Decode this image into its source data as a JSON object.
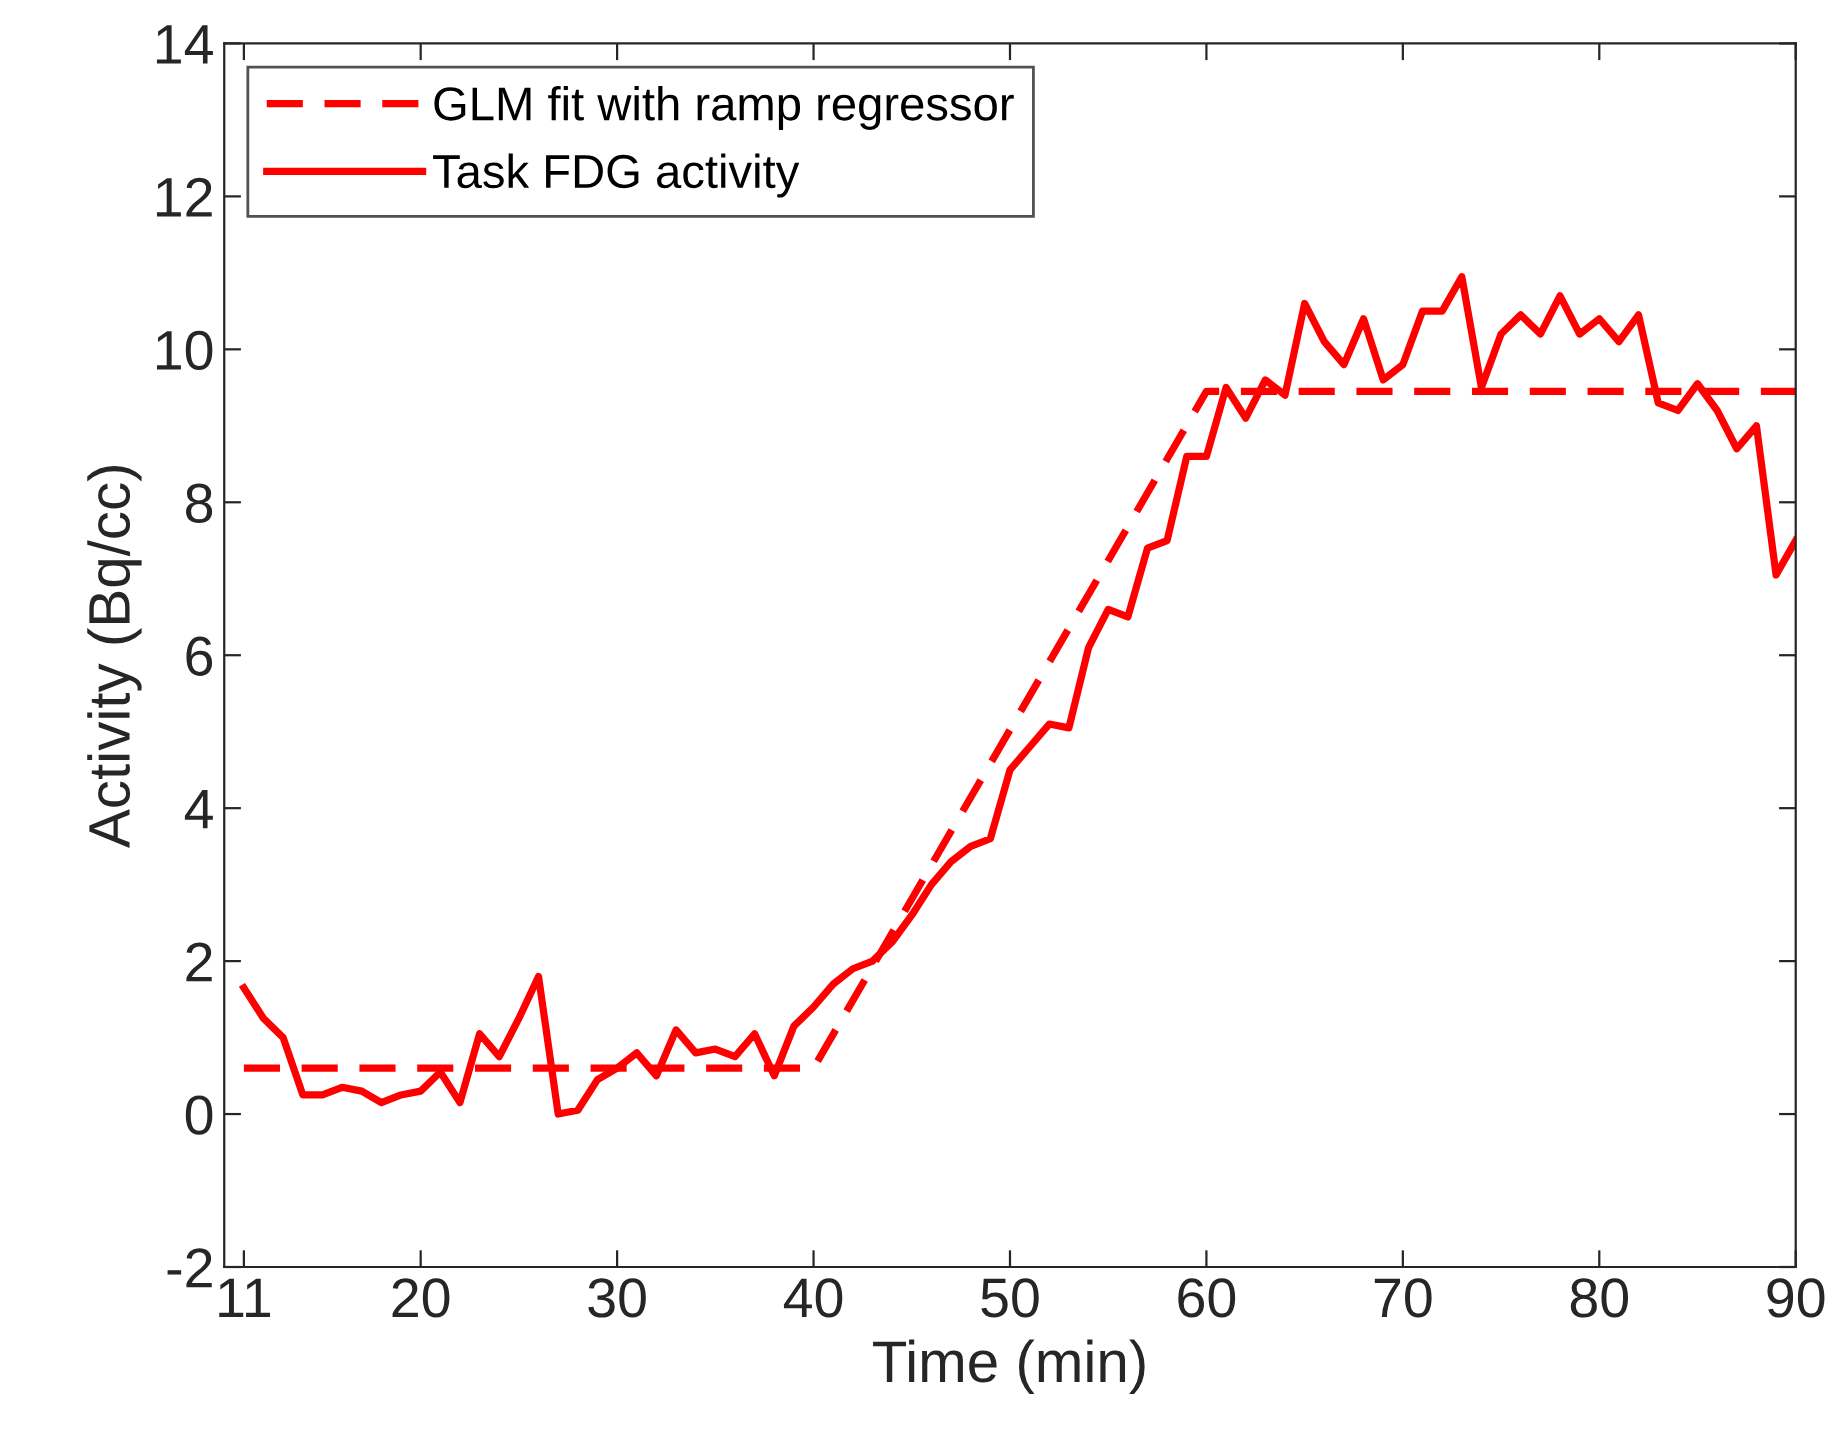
{
  "chart_data": {
    "type": "line",
    "xlabel": "Time (min)",
    "ylabel": "Activity (Bq/cc)",
    "xlim": [
      10,
      90
    ],
    "xticks": [
      11,
      20,
      30,
      40,
      50,
      60,
      70,
      80,
      90
    ],
    "ylim": [
      -2,
      14
    ],
    "yticks": [
      -2,
      0,
      2,
      4,
      6,
      8,
      10,
      12,
      14
    ],
    "grid": false,
    "legend": "top left",
    "marker": "none",
    "series": [
      {
        "name": "GLM fit with ramp regressor",
        "color": "#ff0000",
        "line_style": "dashed",
        "x": [
          11,
          40,
          60,
          90
        ],
        "values": [
          0.6,
          0.6,
          9.45,
          9.45
        ]
      },
      {
        "name": "Task FDG activity",
        "color": "#ff0000",
        "line_style": "solid",
        "x": [
          11,
          12,
          13,
          14,
          15,
          16,
          17,
          18,
          19,
          20,
          21,
          22,
          23,
          24,
          25,
          26,
          27,
          28,
          29,
          30,
          31,
          32,
          33,
          34,
          35,
          36,
          37,
          38,
          39,
          40,
          41,
          42,
          43,
          44,
          45,
          46,
          47,
          48,
          49,
          50,
          51,
          52,
          53,
          54,
          55,
          56,
          57,
          58,
          59,
          60,
          61,
          62,
          63,
          64,
          65,
          66,
          67,
          68,
          69,
          70,
          71,
          72,
          73,
          74,
          75,
          76,
          77,
          78,
          79,
          80,
          81,
          82,
          83,
          84,
          85,
          86,
          87,
          88,
          89,
          90
        ],
        "values": [
          1.65,
          1.25,
          1.0,
          0.25,
          0.25,
          0.35,
          0.3,
          0.15,
          0.25,
          0.3,
          0.55,
          0.15,
          1.05,
          0.75,
          1.25,
          1.8,
          0.0,
          0.05,
          0.45,
          0.6,
          0.8,
          0.5,
          1.1,
          0.8,
          0.85,
          0.75,
          1.05,
          0.5,
          1.15,
          1.4,
          1.7,
          1.9,
          2.0,
          2.25,
          2.6,
          3.0,
          3.3,
          3.5,
          3.6,
          4.5,
          4.8,
          5.1,
          5.05,
          6.1,
          6.6,
          6.5,
          7.4,
          7.5,
          8.6,
          8.6,
          9.5,
          9.1,
          9.6,
          9.4,
          10.6,
          10.1,
          9.8,
          10.4,
          9.6,
          9.8,
          10.5,
          10.5,
          10.95,
          9.5,
          10.2,
          10.45,
          10.2,
          10.7,
          10.2,
          10.4,
          10.1,
          10.45,
          9.3,
          9.2,
          9.55,
          9.2,
          8.7,
          9.0,
          7.05,
          7.5
        ]
      }
    ]
  }
}
